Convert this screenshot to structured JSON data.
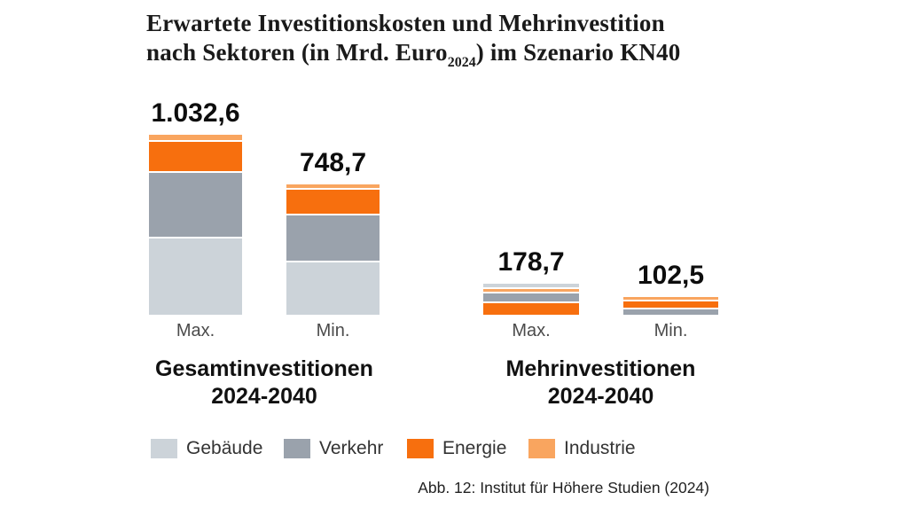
{
  "title": {
    "line1": "Erwartete Investitionskosten und Mehrinvestition",
    "line2_pre": "nach Sektoren (in Mrd. Euro",
    "line2_sub": "2024",
    "line2_post": ") im Szenario KN40"
  },
  "caption": "Abb. 12: Institut für Höhere Studien (2024)",
  "chart_data": {
    "type": "bar",
    "stacked": true,
    "scenario": "KN40",
    "value_unit": "Mrd. Euro 2024",
    "grid": false,
    "legend_position": "bottom",
    "legend": [
      {
        "name": "gebaeude",
        "label": "Gebäude",
        "color": "#ccd3d9"
      },
      {
        "name": "verkehr",
        "label": "Verkehr",
        "color": "#9aa2ac"
      },
      {
        "name": "energie",
        "label": "Energie",
        "color": "#f76f0e"
      },
      {
        "name": "industrie",
        "label": "Industrie",
        "color": "#f9a55f"
      }
    ],
    "groups": [
      {
        "label_line1": "Gesamtinvestitionen",
        "label_line2": "2024-2040",
        "bars": [
          {
            "label": "Max.",
            "total": 1032.6,
            "total_label": "1.032,6",
            "segments_bottom_to_top": [
              {
                "name": "gebaeude",
                "value": 450.0
              },
              {
                "name": "verkehr",
                "value": 380.0
              },
              {
                "name": "energie",
                "value": 172.0
              },
              {
                "name": "industrie",
                "value": 30.6
              }
            ]
          },
          {
            "label": "Min.",
            "total": 748.7,
            "total_label": "748,7",
            "segments_bottom_to_top": [
              {
                "name": "gebaeude",
                "value": 313.0
              },
              {
                "name": "verkehr",
                "value": 270.0
              },
              {
                "name": "energie",
                "value": 145.0
              },
              {
                "name": "industrie",
                "value": 20.7
              }
            ]
          }
        ]
      },
      {
        "label_line1": "Mehrinvestitionen",
        "label_line2": "2024-2040",
        "bars": [
          {
            "label": "Max.",
            "total": 178.7,
            "total_label": "178,7",
            "segments_bottom_to_top": [
              {
                "name": "energie",
                "value": 77.0
              },
              {
                "name": "verkehr",
                "value": 58.0
              },
              {
                "name": "industrie",
                "value": 17.0
              },
              {
                "name": "gebaeude",
                "value": 26.7
              }
            ]
          },
          {
            "label": "Min.",
            "total": 102.5,
            "total_label": "102,5",
            "segments_bottom_to_top": [
              {
                "name": "verkehr",
                "value": 38.0
              },
              {
                "name": "energie",
                "value": 45.0
              },
              {
                "name": "industrie",
                "value": 19.5
              }
            ]
          }
        ]
      }
    ]
  }
}
